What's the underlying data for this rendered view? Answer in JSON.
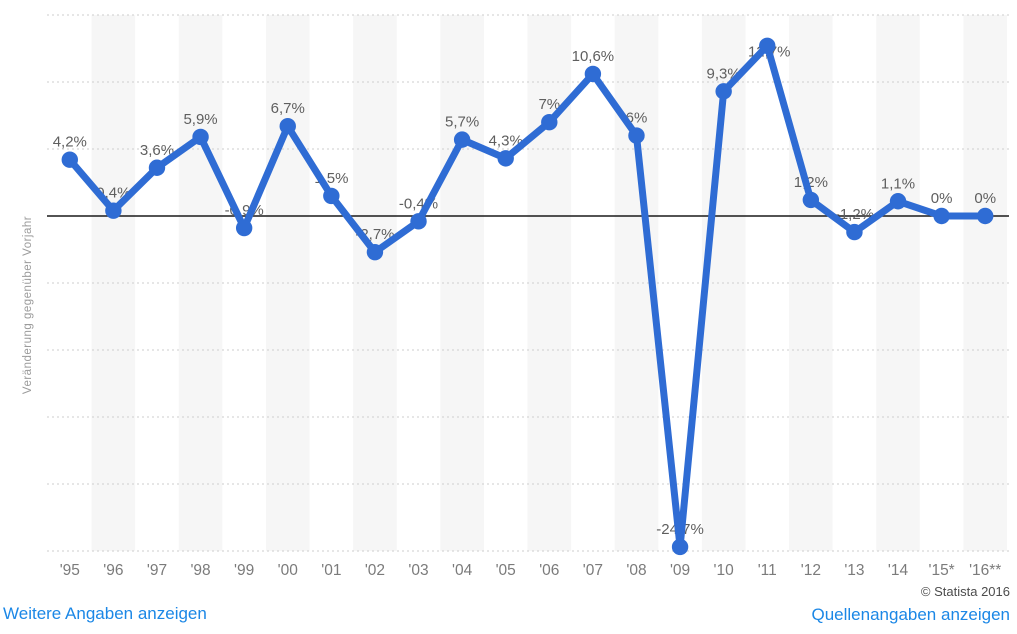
{
  "chart_data": {
    "type": "line",
    "x": [
      "'95",
      "'96",
      "'97",
      "'98",
      "'99",
      "'00",
      "'01",
      "'02",
      "'03",
      "'04",
      "'05",
      "'06",
      "'07",
      "'08",
      "'09",
      "'10",
      "'11",
      "'12",
      "'13",
      "'14",
      "'15*",
      "'16**"
    ],
    "values": [
      4.2,
      0.4,
      3.6,
      5.9,
      -0.9,
      6.7,
      1.5,
      -2.7,
      -0.4,
      5.7,
      4.3,
      7,
      10.6,
      6,
      -24.7,
      9.3,
      12.7,
      1.2,
      -1.2,
      1.1,
      0,
      0
    ],
    "point_labels": [
      "4,2%",
      "0,4%",
      "3,6%",
      "5,9%",
      "-0,9%",
      "6,7%",
      "1,5%",
      "-2,7%",
      "-0,4%",
      "5,7%",
      "4,3%",
      "7%",
      "10,6%",
      "6%",
      "-24,7%",
      "9,3%",
      "12,7%",
      "1,2%",
      "-1,2%",
      "1,1%",
      "0%",
      "0%"
    ],
    "title": "",
    "xlabel": "",
    "ylabel": "Veränderung gegenüber Vorjahr",
    "ylim": [
      -25,
      15
    ],
    "grid_step": 5,
    "gridlines": "dotted horizontal, solid black zero line",
    "background": "alternating vertical stripes per category",
    "legend": "none"
  },
  "colors": {
    "line": "#2f6cd4",
    "stripe": "#f6f6f6",
    "grid": "#cdcdcd",
    "zero_line": "#1a1a1a",
    "point_label_text": "#5f5f5f",
    "axis_text": "#7b7b7b",
    "ylabel_text": "#9b9b9b",
    "link": "#1b87e6",
    "copyright_text": "#4c4c4c"
  },
  "footer": {
    "copyright": "© Statista 2016",
    "more_info_label": "Weitere Angaben anzeigen",
    "sources_label": "Quellenangaben anzeigen"
  }
}
